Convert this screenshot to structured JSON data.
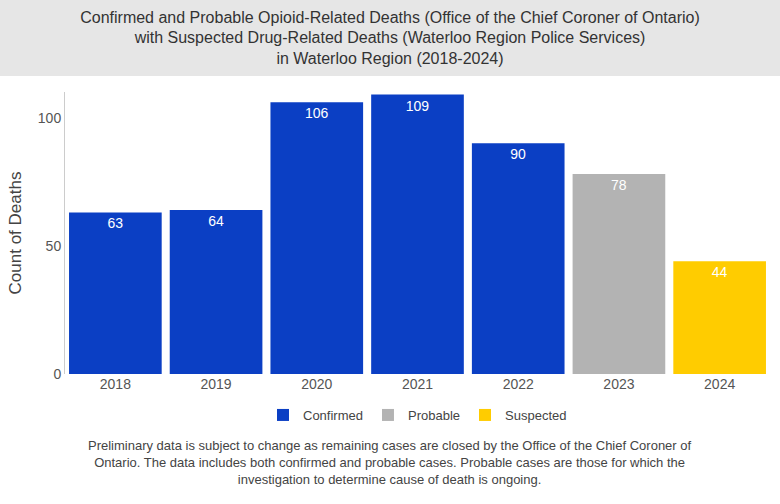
{
  "chart_data": {
    "type": "bar",
    "title": "Confirmed and Probable Opioid-Related Deaths (Office of the Chief Coroner of Ontario)\nwith Suspected Drug-Related Deaths (Waterloo Region Police Services)\nin Waterloo Region (2018-2024)",
    "caption": "Preliminary data is subject to change as remaining cases are closed by the Office of the Chief Coroner of\nOntario. The data includes both confirmed and probable cases. Probable cases are those for which the\ninvestigation to determine cause of death is ongoing.",
    "categories": [
      "2018",
      "2019",
      "2020",
      "2021",
      "2022",
      "2023",
      "2024"
    ],
    "series": [
      {
        "name": "Confirmed",
        "color": "#0b3fc4",
        "values": [
          63,
          64,
          106,
          109,
          90,
          null,
          null
        ]
      },
      {
        "name": "Probable",
        "color": "#b3b3b3",
        "values": [
          null,
          null,
          null,
          null,
          null,
          78,
          null
        ]
      },
      {
        "name": "Suspected",
        "color": "#ffcc00",
        "values": [
          null,
          null,
          null,
          null,
          null,
          null,
          44
        ]
      }
    ],
    "y_label": "Count of Deaths",
    "ylim": [
      0,
      110
    ],
    "yticks": [
      0,
      50,
      100
    ],
    "grid": false,
    "legend": "bottom",
    "data_labels": true
  }
}
